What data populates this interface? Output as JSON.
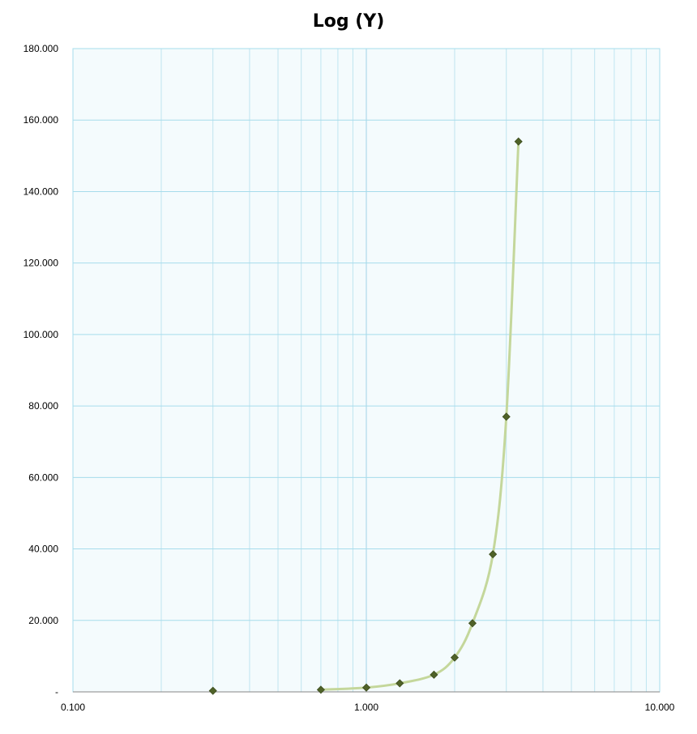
{
  "chart_data": {
    "type": "scatter",
    "title": "Log (Y)",
    "xlabel": "",
    "ylabel": "",
    "x_scale": "log",
    "xlim": [
      0.1,
      10
    ],
    "ylim": [
      0,
      180
    ],
    "x_tick_labels": [
      "0.100",
      "1.000",
      "10.000"
    ],
    "y_tick_labels": [
      "-",
      "20.000",
      "40.000",
      "60.000",
      "80.000",
      "100.000",
      "120.000",
      "140.000",
      "160.000",
      "180.000"
    ],
    "grid": true,
    "legend": "none",
    "series": [
      {
        "x": [
          0.3,
          0.7,
          1.0,
          1.3,
          1.7,
          2.0,
          2.3,
          2.7,
          3.0,
          3.3
        ],
        "y": [
          0.3,
          0.6,
          1.2,
          2.4,
          4.8,
          9.6,
          19.2,
          38.5,
          77.0,
          154.0
        ],
        "marker": "diamond",
        "marker_color": "#4f6228",
        "line_color": "#c4d79b",
        "smooth_line": true
      }
    ]
  }
}
